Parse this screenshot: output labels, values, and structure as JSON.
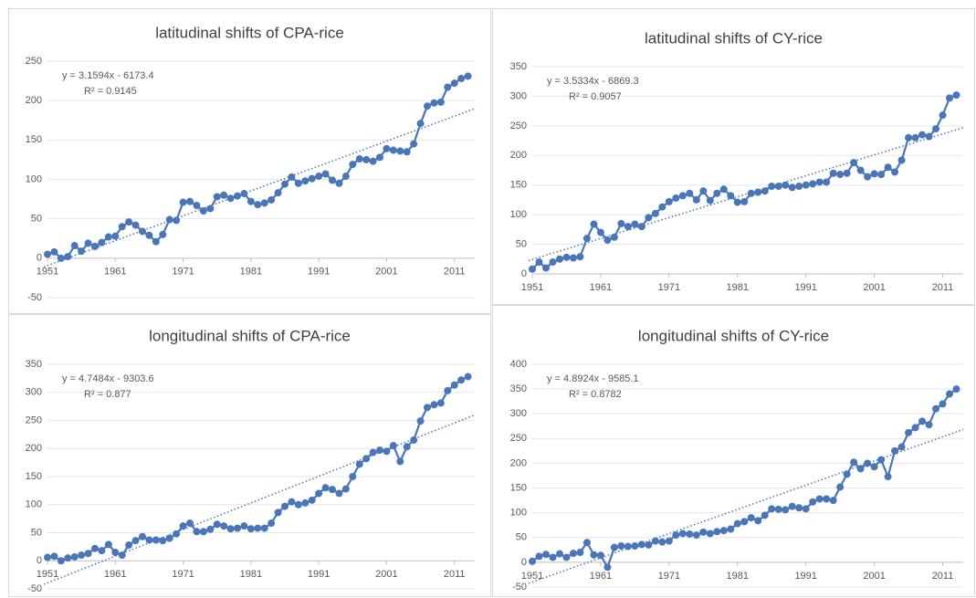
{
  "chart_data": [
    {
      "type": "line",
      "title": "latitudinal shifts of CPA-rice",
      "color": "#4a76b8",
      "grid": true,
      "x": [
        1951,
        1952,
        1953,
        1954,
        1955,
        1956,
        1957,
        1958,
        1959,
        1960,
        1961,
        1962,
        1963,
        1964,
        1965,
        1966,
        1967,
        1968,
        1969,
        1970,
        1971,
        1972,
        1973,
        1974,
        1975,
        1976,
        1977,
        1978,
        1979,
        1980,
        1981,
        1982,
        1983,
        1984,
        1985,
        1986,
        1987,
        1988,
        1989,
        1990,
        1991,
        1992,
        1993,
        1994,
        1995,
        1996,
        1997,
        1998,
        1999,
        2000,
        2001,
        2002,
        2003,
        2004,
        2005,
        2006,
        2007,
        2008,
        2009,
        2010,
        2011,
        2012,
        2013
      ],
      "values": [
        5,
        8,
        0,
        2,
        16,
        9,
        19,
        15,
        20,
        27,
        28,
        40,
        46,
        42,
        34,
        29,
        21,
        30,
        49,
        48,
        71,
        72,
        67,
        60,
        63,
        78,
        80,
        76,
        79,
        82,
        72,
        68,
        70,
        74,
        83,
        94,
        103,
        95,
        98,
        101,
        104,
        107,
        99,
        95,
        104,
        119,
        126,
        125,
        123,
        128,
        139,
        137,
        136,
        135,
        145,
        171,
        193,
        197,
        198,
        217,
        222,
        228,
        231
      ],
      "xlim": [
        1951,
        2014
      ],
      "xticks": [
        1951,
        1961,
        1971,
        1981,
        1991,
        2001,
        2011
      ],
      "ylim": [
        -50,
        250
      ],
      "yticks": [
        -50,
        0,
        50,
        100,
        150,
        200,
        250
      ],
      "trendline": {
        "label": "y = 3.1594x - 6173.4",
        "slope": 3.1594,
        "intercept": -6173.4,
        "r2_label": "R² = 0.9145"
      }
    },
    {
      "type": "line",
      "title": "latitudinal shifts of CY-rice",
      "color": "#4a76b8",
      "grid": true,
      "x": [
        1951,
        1952,
        1953,
        1954,
        1955,
        1956,
        1957,
        1958,
        1959,
        1960,
        1961,
        1962,
        1963,
        1964,
        1965,
        1966,
        1967,
        1968,
        1969,
        1970,
        1971,
        1972,
        1973,
        1974,
        1975,
        1976,
        1977,
        1978,
        1979,
        1980,
        1981,
        1982,
        1983,
        1984,
        1985,
        1986,
        1987,
        1988,
        1989,
        1990,
        1991,
        1992,
        1993,
        1994,
        1995,
        1996,
        1997,
        1998,
        1999,
        2000,
        2001,
        2002,
        2003,
        2004,
        2005,
        2006,
        2007,
        2008,
        2009,
        2010,
        2011,
        2012,
        2013
      ],
      "values": [
        8,
        20,
        10,
        20,
        25,
        28,
        27,
        29,
        60,
        84,
        70,
        57,
        62,
        85,
        80,
        84,
        80,
        95,
        102,
        113,
        122,
        128,
        132,
        136,
        125,
        140,
        124,
        136,
        143,
        132,
        121,
        122,
        136,
        138,
        140,
        148,
        148,
        150,
        146,
        148,
        150,
        152,
        155,
        155,
        170,
        168,
        170,
        188,
        175,
        164,
        169,
        168,
        180,
        172,
        192,
        230,
        230,
        235,
        232,
        245,
        268,
        297,
        302
      ],
      "xlim": [
        1951,
        2014
      ],
      "xticks": [
        1951,
        1961,
        1971,
        1981,
        1991,
        2001,
        2011
      ],
      "ylim": [
        0,
        350
      ],
      "yticks": [
        0,
        50,
        100,
        150,
        200,
        250,
        300,
        350
      ],
      "trendline": {
        "label": "y = 3.5334x - 6869.3",
        "slope": 3.5334,
        "intercept": -6869.3,
        "r2_label": "R² = 0.9057"
      }
    },
    {
      "type": "line",
      "title": "longitudinal shifts of CPA-rice",
      "color": "#4a76b8",
      "grid": true,
      "x": [
        1951,
        1952,
        1953,
        1954,
        1955,
        1956,
        1957,
        1958,
        1959,
        1960,
        1961,
        1962,
        1963,
        1964,
        1965,
        1966,
        1967,
        1968,
        1969,
        1970,
        1971,
        1972,
        1973,
        1974,
        1975,
        1976,
        1977,
        1978,
        1979,
        1980,
        1981,
        1982,
        1983,
        1984,
        1985,
        1986,
        1987,
        1988,
        1989,
        1990,
        1991,
        1992,
        1993,
        1994,
        1995,
        1996,
        1997,
        1998,
        1999,
        2000,
        2001,
        2002,
        2003,
        2004,
        2005,
        2006,
        2007,
        2008,
        2009,
        2010,
        2011,
        2012,
        2013
      ],
      "values": [
        6,
        8,
        0,
        5,
        7,
        10,
        13,
        22,
        18,
        29,
        15,
        10,
        28,
        36,
        43,
        37,
        37,
        36,
        40,
        48,
        62,
        67,
        52,
        52,
        56,
        65,
        62,
        57,
        58,
        62,
        57,
        58,
        58,
        67,
        86,
        97,
        105,
        100,
        103,
        108,
        120,
        130,
        127,
        120,
        128,
        150,
        172,
        182,
        193,
        197,
        195,
        205,
        177,
        203,
        215,
        249,
        273,
        278,
        281,
        303,
        313,
        322,
        328
      ],
      "xlim": [
        1951,
        2014
      ],
      "xticks": [
        1951,
        1961,
        1971,
        1981,
        1991,
        2001,
        2011
      ],
      "ylim": [
        -50,
        350
      ],
      "yticks": [
        -50,
        0,
        50,
        100,
        150,
        200,
        250,
        300,
        350
      ],
      "trendline": {
        "label": "y = 4.7484x - 9303.6",
        "slope": 4.7484,
        "intercept": -9303.6,
        "r2_label": "R² = 0.877"
      }
    },
    {
      "type": "line",
      "title": "longitudinal shifts of CY-rice",
      "color": "#4a76b8",
      "grid": true,
      "x": [
        1951,
        1952,
        1953,
        1954,
        1955,
        1956,
        1957,
        1958,
        1959,
        1960,
        1961,
        1962,
        1963,
        1964,
        1965,
        1966,
        1967,
        1968,
        1969,
        1970,
        1971,
        1972,
        1973,
        1974,
        1975,
        1976,
        1977,
        1978,
        1979,
        1980,
        1981,
        1982,
        1983,
        1984,
        1985,
        1986,
        1987,
        1988,
        1989,
        1990,
        1991,
        1992,
        1993,
        1994,
        1995,
        1996,
        1997,
        1998,
        1999,
        2000,
        2001,
        2002,
        2003,
        2004,
        2005,
        2006,
        2007,
        2008,
        2009,
        2010,
        2011,
        2012,
        2013
      ],
      "values": [
        2,
        12,
        16,
        10,
        17,
        10,
        18,
        20,
        40,
        15,
        14,
        -10,
        30,
        33,
        32,
        33,
        36,
        35,
        43,
        41,
        43,
        55,
        58,
        57,
        55,
        61,
        58,
        62,
        64,
        67,
        78,
        82,
        90,
        84,
        95,
        108,
        107,
        106,
        113,
        110,
        108,
        122,
        128,
        128,
        125,
        152,
        178,
        202,
        189,
        200,
        193,
        207,
        173,
        225,
        233,
        262,
        272,
        285,
        278,
        310,
        320,
        340,
        350
      ],
      "xlim": [
        1951,
        2014
      ],
      "xticks": [
        1951,
        1961,
        1971,
        1981,
        1991,
        2001,
        2011
      ],
      "ylim": [
        -50,
        400
      ],
      "yticks": [
        -50,
        0,
        50,
        100,
        150,
        200,
        250,
        300,
        350,
        400
      ],
      "trendline": {
        "label": "y = 4.8924x - 9585.1",
        "slope": 4.8924,
        "intercept": -9585.1,
        "r2_label": "R² = 0.8782"
      }
    }
  ]
}
